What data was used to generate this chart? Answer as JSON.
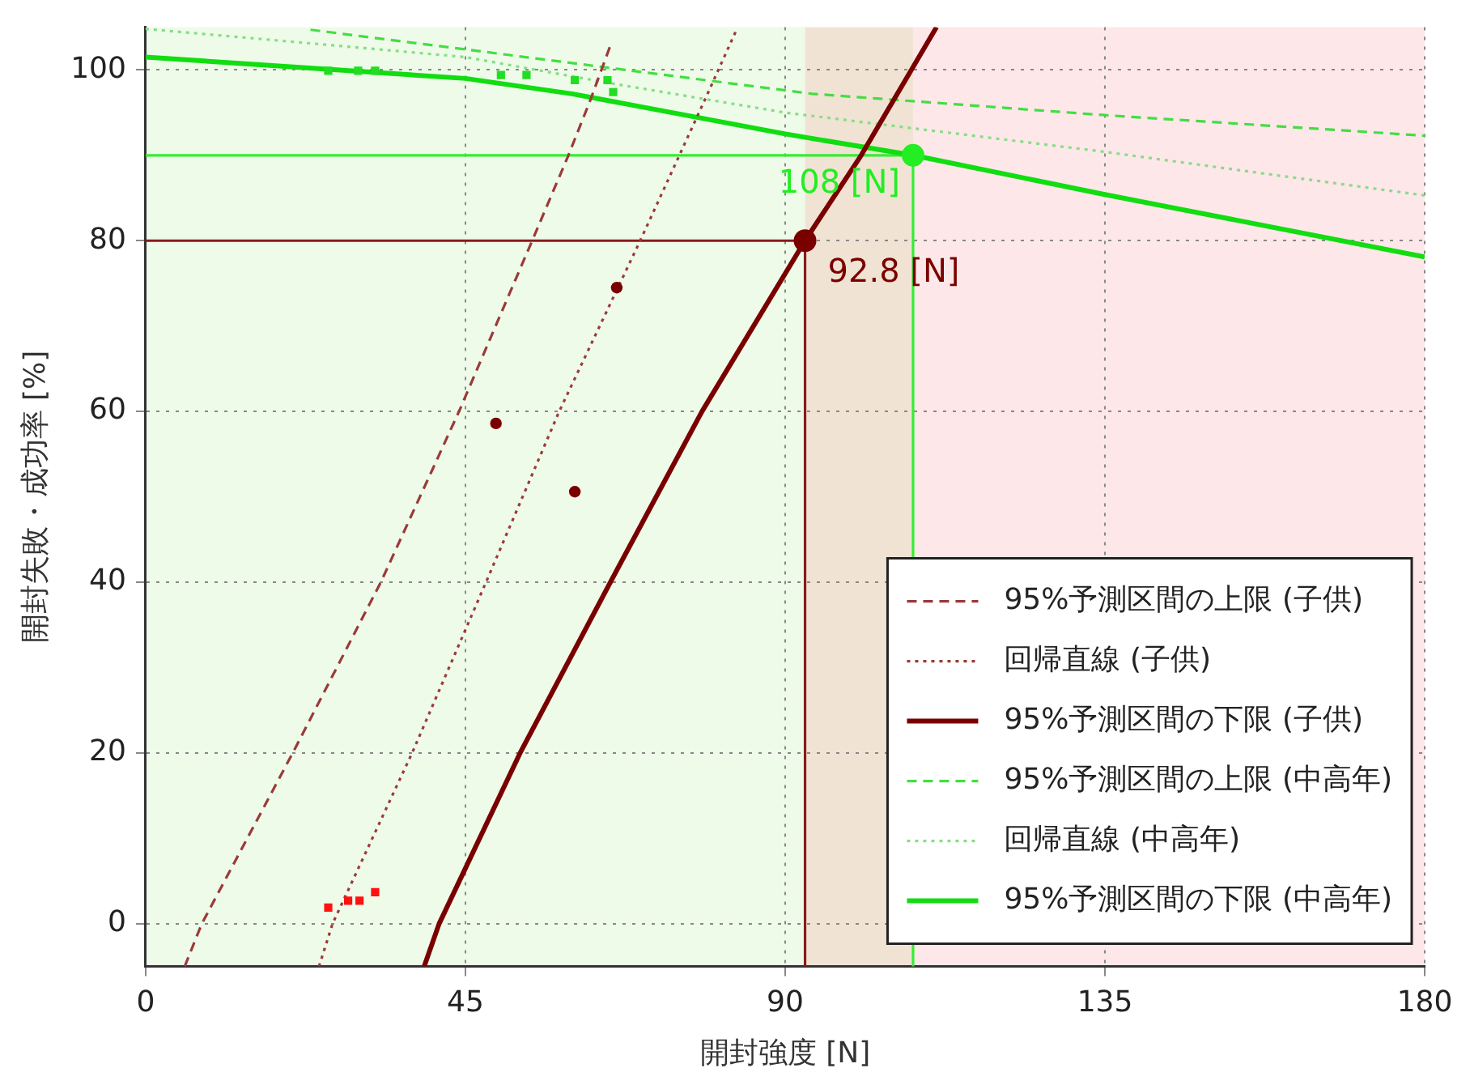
{
  "chart_data": {
    "type": "line",
    "xlabel": "開封強度 [N]",
    "ylabel": "開封失敗・成功率 [%]",
    "xlim": [
      0,
      180
    ],
    "xticks": [
      0,
      45,
      90,
      135,
      180
    ],
    "ylim": [
      -5,
      105
    ],
    "yticks": [
      0,
      20,
      40,
      60,
      80,
      100
    ],
    "grid": true,
    "legend": "bottom right",
    "series": [
      {
        "name": "95%予測区間の上限 (子供)",
        "line_style": "dashed",
        "marker": "none",
        "color": "#9a3a3a",
        "x": [
          5.5,
          7.9,
          20.7,
          33.1,
          44.1,
          54.4,
          59.5,
          62.6,
          65.6
        ],
        "values": [
          -5,
          0,
          20,
          40,
          60,
          80,
          90,
          96.5,
          103.3
        ]
      },
      {
        "name": "回帰直線 (子供)",
        "line_style": "dotted",
        "marker": "none",
        "color": "#9a3a3a",
        "x": [
          24.4,
          26.3,
          37.5,
          47.9,
          58.2,
          69.6,
          78.7,
          83.1
        ],
        "values": [
          -5,
          0,
          20,
          40,
          60,
          80,
          96.5,
          104.6
        ]
      },
      {
        "name": "95%予測区間の下限 (子供)",
        "line_style": "solid",
        "marker": "none",
        "color": "#7a0000",
        "x": [
          39.2,
          41.3,
          52.7,
          65.4,
          78.3,
          92.8,
          100.7,
          111.3
        ],
        "values": [
          -5,
          0,
          20,
          40,
          60,
          80,
          90,
          105
        ]
      },
      {
        "name": "95%予測区間の上限 (中高年)",
        "line_style": "dashed",
        "marker": "none",
        "color": "#44dd44",
        "x": [
          23.2,
          45,
          93.8,
          135,
          180
        ],
        "values": [
          104.7,
          102.4,
          97.2,
          94.7,
          92.3
        ]
      },
      {
        "name": "回帰直線 (中高年)",
        "line_style": "dotted",
        "marker": "none",
        "color": "#88dd88",
        "x": [
          0,
          22,
          45,
          65,
          90,
          135,
          180
        ],
        "values": [
          104.8,
          103.2,
          101.5,
          98.5,
          95,
          90.4,
          85.3
        ]
      },
      {
        "name": "95%予測区間の下限 (中高年)",
        "line_style": "solid",
        "marker": "none",
        "color": "#11dd11",
        "x": [
          0,
          45,
          60,
          90,
          108,
          135,
          180
        ],
        "values": [
          101.5,
          99,
          97.2,
          92.5,
          90,
          85.4,
          78.1
        ]
      },
      {
        "type": "scatter",
        "marker": "circle",
        "color": "#7a0000",
        "x": [
          49.3,
          60.4,
          66.3
        ],
        "values": [
          58.6,
          50.6,
          74.5
        ]
      },
      {
        "type": "scatter",
        "marker": "square",
        "color": "#ff1111",
        "x": [
          25.7,
          28.5,
          30.1,
          32.3
        ],
        "values": [
          1.9,
          2.7,
          2.7,
          3.7
        ]
      },
      {
        "type": "scatter",
        "marker": "square",
        "color": "#22dd22",
        "x": [
          25.7,
          29.9,
          32.3,
          50,
          53.6,
          60.4,
          65,
          65.8
        ],
        "values": [
          99.9,
          99.9,
          99.9,
          99.4,
          99.4,
          98.8,
          98.8,
          97.4
        ]
      },
      {
        "type": "line",
        "line_style": "solid",
        "marker": "none",
        "color": "#8a1a1a",
        "x": [
          0,
          92.8,
          92.8
        ],
        "values": [
          80,
          80,
          -5
        ]
      },
      {
        "type": "line",
        "line_style": "solid",
        "marker": "none",
        "color": "#33ee33",
        "x": [
          0,
          108,
          108
        ],
        "values": [
          90,
          90,
          -5
        ]
      },
      {
        "type": "scatter",
        "marker": "circle",
        "color": "#22ee22",
        "x": [
          108
        ],
        "values": [
          90
        ]
      },
      {
        "type": "scatter",
        "marker": "circle",
        "color": "#7a0000",
        "x": [
          92.8
        ],
        "values": [
          80
        ]
      }
    ],
    "bands": [
      {
        "axis": "x",
        "from": 0,
        "to": 92.8,
        "color": "#eefbe9"
      },
      {
        "axis": "x",
        "from": 92.8,
        "to": 108,
        "color": "#f1e3d3"
      },
      {
        "axis": "x",
        "from": 108,
        "to": 180,
        "color": "#fde7e9"
      }
    ],
    "annotations": [
      {
        "text": "108 [N]",
        "x": 108,
        "y": 90
      },
      {
        "text": "92.8 [N]",
        "x": 92.8,
        "y": 80
      }
    ]
  }
}
